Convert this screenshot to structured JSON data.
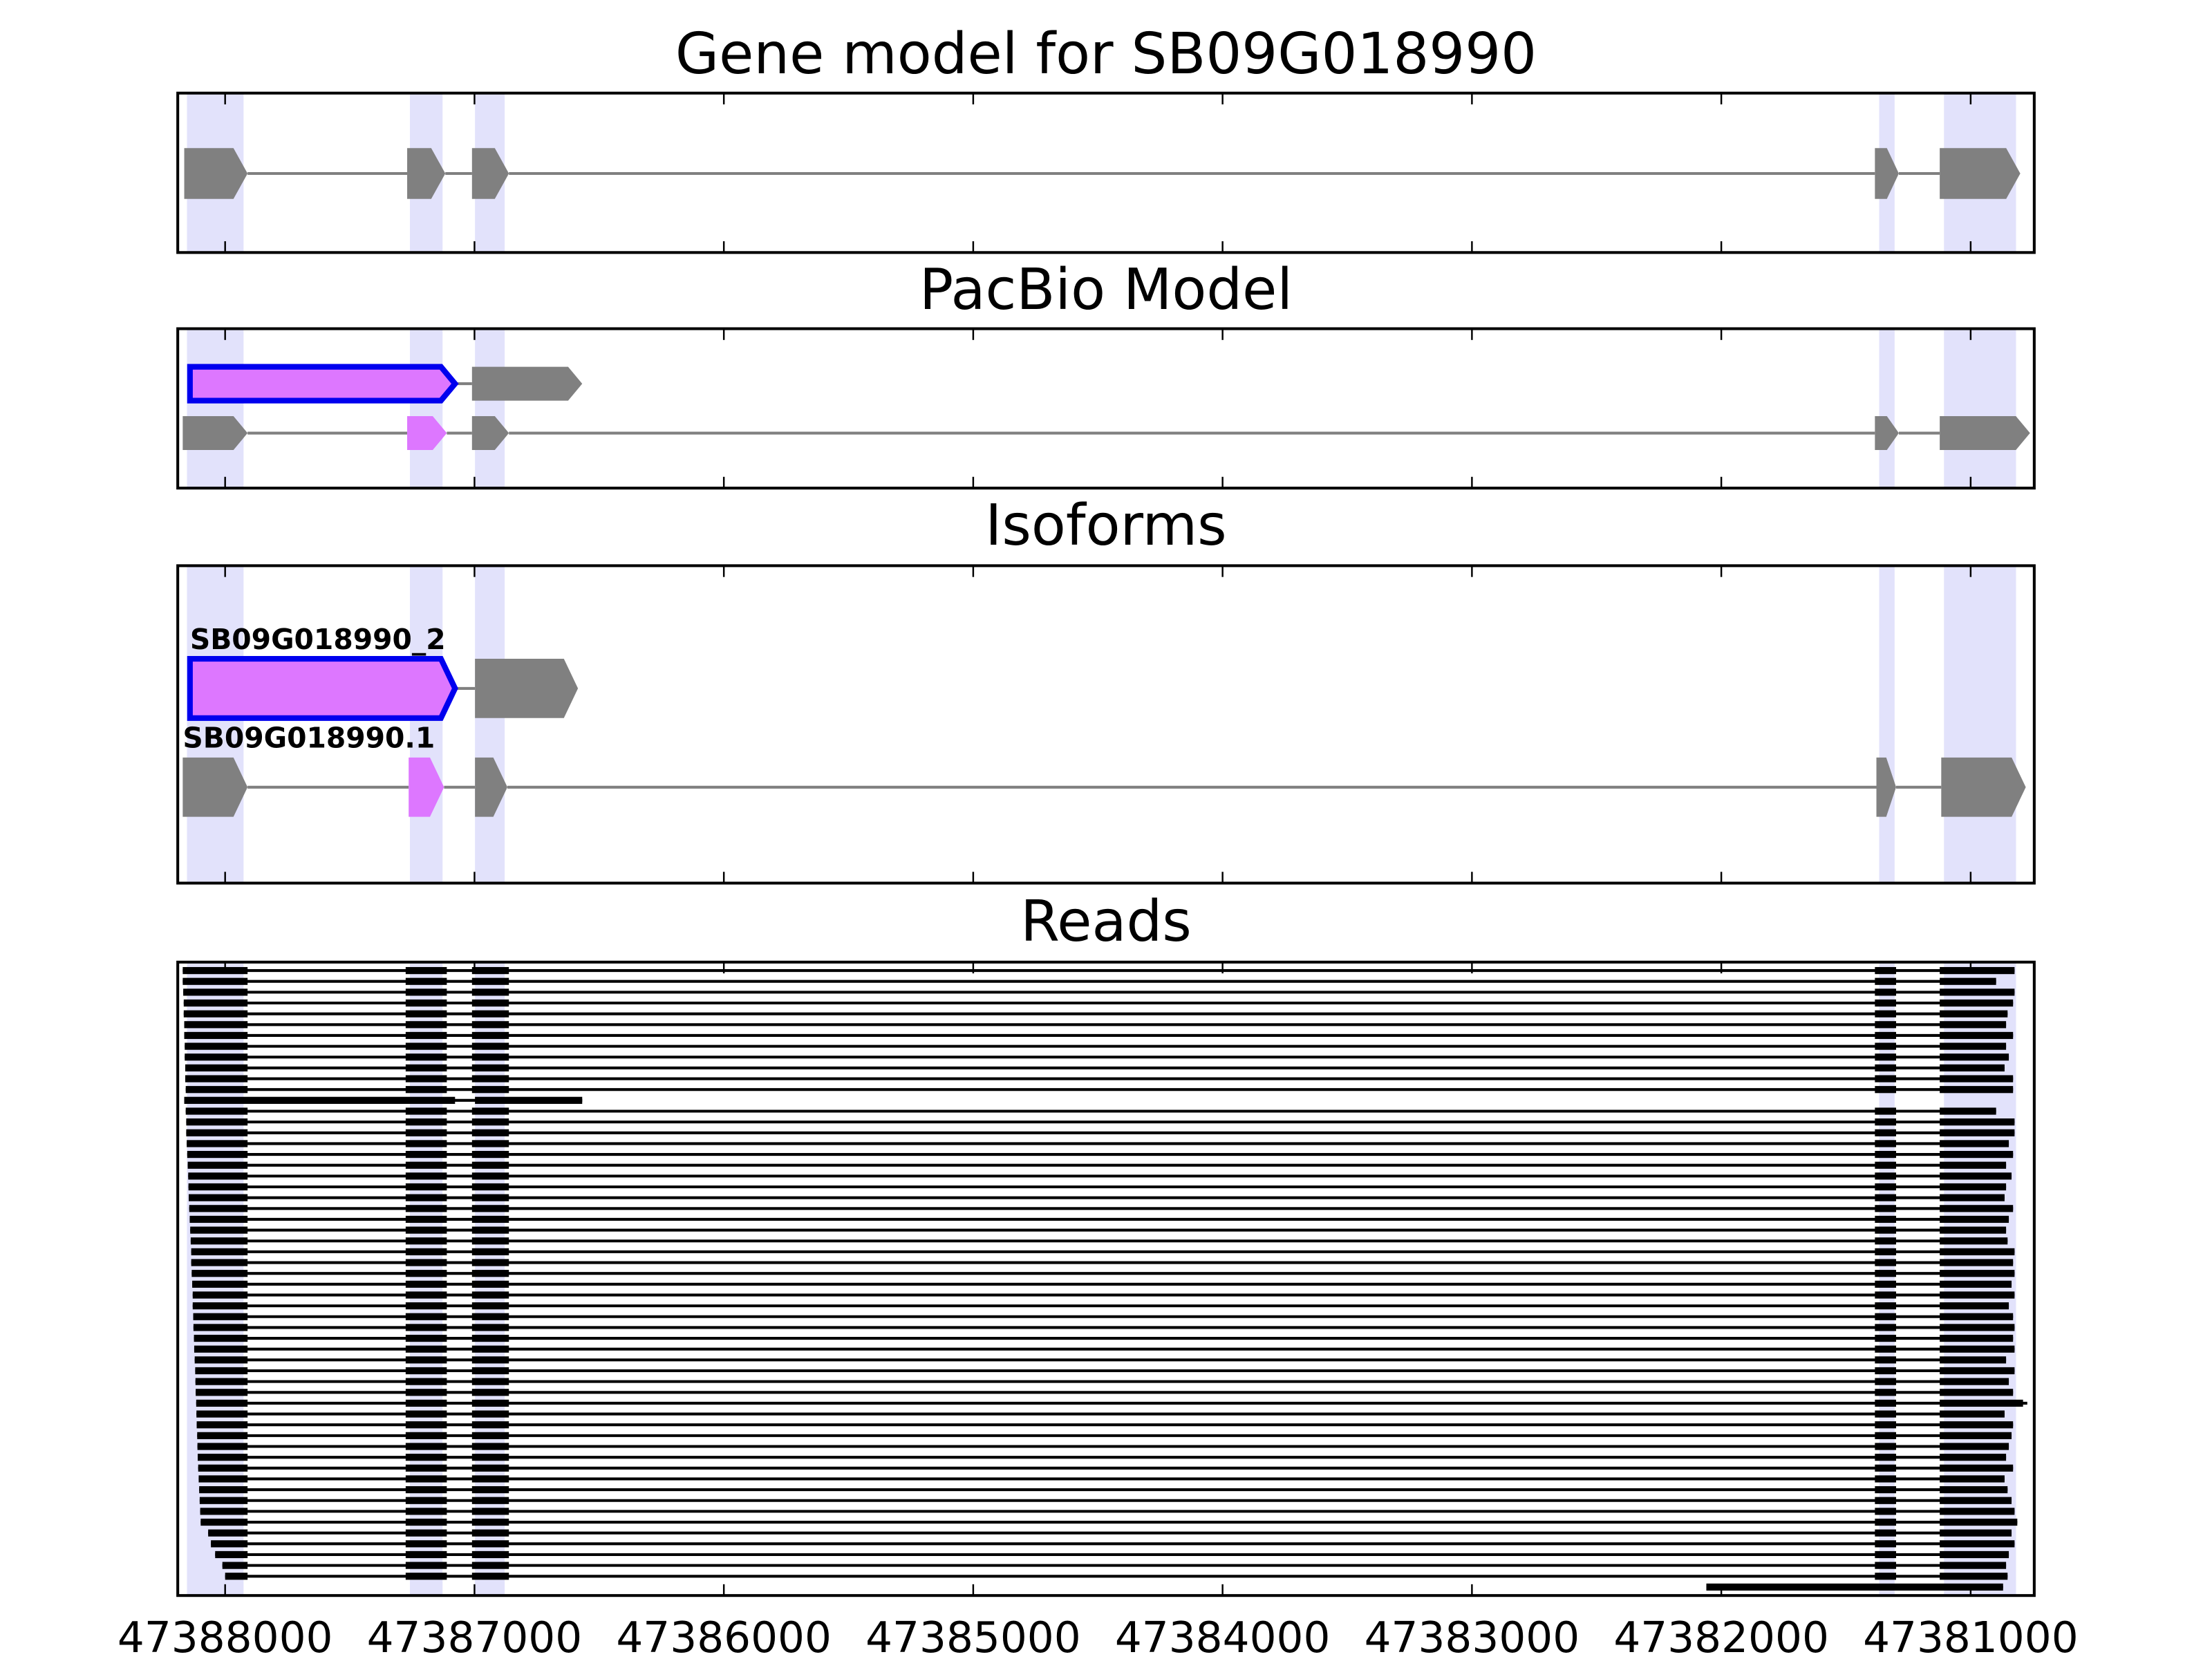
{
  "chart_data": [
    {
      "type": "gene-track",
      "title": "Gene model for SB09G018990",
      "xlim": [
        47388190,
        47380745
      ],
      "xticks": [
        47388000,
        47387000,
        47386000,
        47385000,
        47384000,
        47383000,
        47382000,
        47381000
      ],
      "highlight_color": "#e2e2fb",
      "highlights": [
        [
          47388153,
          47387926
        ],
        [
          47387259,
          47387128
        ],
        [
          47386998,
          47386879
        ],
        [
          47381367,
          47381305
        ],
        [
          47381107,
          47380818
        ]
      ],
      "tracks": [
        {
          "exons": [
            {
              "start": 47388164,
              "end": 47387910,
              "color": "#808080"
            },
            {
              "start": 47387270,
              "end": 47387117,
              "color": "#808080"
            },
            {
              "start": 47387010,
              "end": 47386862,
              "color": "#808080"
            },
            {
              "start": 47381384,
              "end": 47381288,
              "color": "#808080"
            },
            {
              "start": 47381124,
              "end": 47380801,
              "color": "#808080"
            }
          ]
        }
      ]
    },
    {
      "type": "gene-track",
      "title": "PacBio Model",
      "xlim": [
        47388190,
        47380745
      ],
      "xticks": [
        47388000,
        47387000,
        47386000,
        47385000,
        47384000,
        47383000,
        47382000,
        47381000
      ],
      "highlight_color": "#e2e2fb",
      "highlights": [
        [
          47388153,
          47387926
        ],
        [
          47387259,
          47387128
        ],
        [
          47386998,
          47386879
        ],
        [
          47381367,
          47381305
        ],
        [
          47381107,
          47380818
        ]
      ],
      "tracks": [
        {
          "exons": [
            {
              "start": 47388141,
              "end": 47387078,
              "color": "#dd77ff",
              "edgecolor": "#0000ee"
            },
            {
              "start": 47387010,
              "end": 47386568,
              "color": "#808080"
            }
          ]
        },
        {
          "exons": [
            {
              "start": 47388170,
              "end": 47387910,
              "color": "#808080"
            },
            {
              "start": 47387270,
              "end": 47387111,
              "color": "#dd77ff"
            },
            {
              "start": 47387010,
              "end": 47386862,
              "color": "#808080"
            },
            {
              "start": 47381384,
              "end": 47381288,
              "color": "#808080"
            },
            {
              "start": 47381124,
              "end": 47380762,
              "color": "#808080"
            }
          ]
        }
      ]
    },
    {
      "type": "gene-track",
      "title": "Isoforms",
      "xlim": [
        47388190,
        47380745
      ],
      "xticks": [
        47388000,
        47387000,
        47386000,
        47385000,
        47384000,
        47383000,
        47382000,
        47381000
      ],
      "highlight_color": "#e2e2fb",
      "highlights": [
        [
          47388153,
          47387926
        ],
        [
          47387259,
          47387128
        ],
        [
          47386998,
          47386879
        ],
        [
          47381367,
          47381305
        ],
        [
          47381107,
          47380818
        ]
      ],
      "tracks": [
        {
          "name": "SB09G018990_2",
          "exons": [
            {
              "start": 47388141,
              "end": 47387078,
              "color": "#dd77ff",
              "edgecolor": "#0000ee"
            },
            {
              "start": 47386998,
              "end": 47386585,
              "color": "#808080"
            }
          ]
        },
        {
          "name": "SB09G018990.1",
          "exons": [
            {
              "start": 47388170,
              "end": 47387910,
              "color": "#808080"
            },
            {
              "start": 47387264,
              "end": 47387122,
              "color": "#dd77ff"
            },
            {
              "start": 47386998,
              "end": 47386868,
              "color": "#808080"
            },
            {
              "start": 47381378,
              "end": 47381299,
              "color": "#808080"
            },
            {
              "start": 47381118,
              "end": 47380779,
              "color": "#808080"
            }
          ]
        }
      ]
    },
    {
      "type": "reads",
      "title": "Reads",
      "xlim": [
        47388190,
        47380745
      ],
      "xticks": [
        47388000,
        47387000,
        47386000,
        47385000,
        47384000,
        47383000,
        47382000,
        47381000
      ],
      "highlight_color": "#e2e2fb",
      "highlights": [
        [
          47388153,
          47387926
        ],
        [
          47387259,
          47387128
        ],
        [
          47386998,
          47386879
        ],
        [
          47381367,
          47381305
        ],
        [
          47381107,
          47380818
        ]
      ],
      "blocks": [
        [
          47388170,
          47387910
        ],
        [
          47387276,
          47387111
        ],
        [
          47387010,
          47386862
        ],
        [
          47381384,
          47381299
        ],
        [
          47381124,
          47380790
        ]
      ],
      "reads": [
        {
          "start": 47388170,
          "end": 47380824
        },
        {
          "start": 47388170,
          "end": 47380898
        },
        {
          "start": 47388168,
          "end": 47380824
        },
        {
          "start": 47388166,
          "end": 47380830
        },
        {
          "start": 47388166,
          "end": 47380852
        },
        {
          "start": 47388164,
          "end": 47380858
        },
        {
          "start": 47388164,
          "end": 47380830
        },
        {
          "start": 47388162,
          "end": 47380858
        },
        {
          "start": 47388162,
          "end": 47380847
        },
        {
          "start": 47388160,
          "end": 47380864
        },
        {
          "start": 47388160,
          "end": 47380830
        },
        {
          "start": 47388158,
          "end": 47380830
        },
        {
          "start": 47388164,
          "end": 47386568,
          "blocks": [
            [
              47388164,
              47387078
            ],
            [
              47386998,
              47386568
            ]
          ]
        },
        {
          "start": 47388158,
          "end": 47380898
        },
        {
          "start": 47388156,
          "end": 47380824
        },
        {
          "start": 47388156,
          "end": 47380824
        },
        {
          "start": 47388154,
          "end": 47380847
        },
        {
          "start": 47388152,
          "end": 47380830
        },
        {
          "start": 47388150,
          "end": 47380858
        },
        {
          "start": 47388148,
          "end": 47380836
        },
        {
          "start": 47388147,
          "end": 47380858
        },
        {
          "start": 47388146,
          "end": 47380864
        },
        {
          "start": 47388144,
          "end": 47380830
        },
        {
          "start": 47388142,
          "end": 47380847
        },
        {
          "start": 47388140,
          "end": 47380858
        },
        {
          "start": 47388138,
          "end": 47380852
        },
        {
          "start": 47388136,
          "end": 47380824
        },
        {
          "start": 47388136,
          "end": 47380830
        },
        {
          "start": 47388134,
          "end": 47380824
        },
        {
          "start": 47388132,
          "end": 47380836
        },
        {
          "start": 47388130,
          "end": 47380824
        },
        {
          "start": 47388130,
          "end": 47380847
        },
        {
          "start": 47388128,
          "end": 47380830
        },
        {
          "start": 47388127,
          "end": 47380824
        },
        {
          "start": 47388125,
          "end": 47380830
        },
        {
          "start": 47388124,
          "end": 47380824
        },
        {
          "start": 47388122,
          "end": 47380858
        },
        {
          "start": 47388120,
          "end": 47380824
        },
        {
          "start": 47388119,
          "end": 47380847
        },
        {
          "start": 47388118,
          "end": 47380830
        },
        {
          "start": 47388116,
          "end": 47380773
        },
        {
          "start": 47388115,
          "end": 47380864
        },
        {
          "start": 47388114,
          "end": 47380830
        },
        {
          "start": 47388112,
          "end": 47380836
        },
        {
          "start": 47388111,
          "end": 47380847
        },
        {
          "start": 47388110,
          "end": 47380858
        },
        {
          "start": 47388108,
          "end": 47380830
        },
        {
          "start": 47388106,
          "end": 47380864
        },
        {
          "start": 47388104,
          "end": 47380852
        },
        {
          "start": 47388102,
          "end": 47380836
        },
        {
          "start": 47388100,
          "end": 47380824
        },
        {
          "start": 47388098,
          "end": 47380813
        },
        {
          "start": 47388068,
          "end": 47380836
        },
        {
          "start": 47388057,
          "end": 47380824
        },
        {
          "start": 47388040,
          "end": 47380847
        },
        {
          "start": 47388011,
          "end": 47380858
        },
        {
          "start": 47388000,
          "end": 47380852
        },
        {
          "start": 47382060,
          "end": 47380870,
          "blocks": [
            [
              47382060,
              47380870
            ]
          ]
        }
      ]
    }
  ]
}
